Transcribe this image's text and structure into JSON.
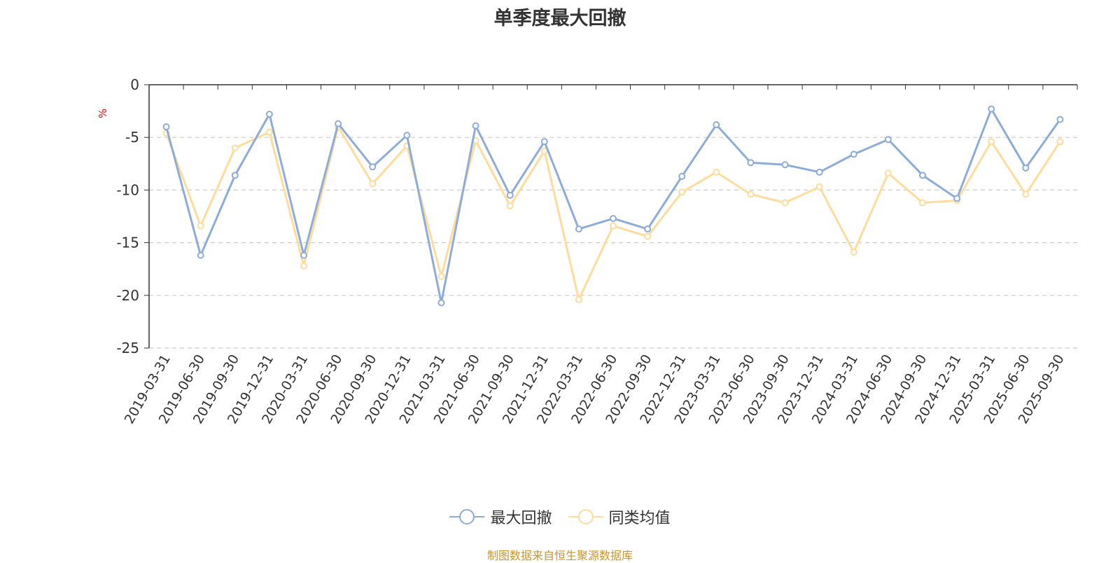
{
  "chart_data": {
    "type": "line",
    "title": "单季度最大回撤",
    "ylabel": "%",
    "ylim": [
      -25,
      0
    ],
    "yticks": [
      0,
      -5,
      -10,
      -15,
      -20,
      -25
    ],
    "grid": true,
    "legend_position": "bottom",
    "categories": [
      "2019-03-31",
      "2019-06-30",
      "2019-09-30",
      "2019-12-31",
      "2020-03-31",
      "2020-06-30",
      "2020-09-30",
      "2020-12-31",
      "2021-03-31",
      "2021-06-30",
      "2021-09-30",
      "2021-12-31",
      "2022-03-31",
      "2022-06-30",
      "2022-09-30",
      "2022-12-31",
      "2023-03-31",
      "2023-06-30",
      "2023-09-30",
      "2023-12-31",
      "2024-03-31",
      "2024-06-30",
      "2024-09-30",
      "2024-12-31",
      "2025-03-31",
      "2025-06-30",
      "2025-09-30"
    ],
    "series": [
      {
        "name": "最大回撤",
        "color": "#8eacd8",
        "values": [
          -4.0,
          -16.2,
          -8.6,
          -2.8,
          -16.2,
          -3.7,
          -7.8,
          -4.8,
          -20.7,
          -3.9,
          -10.5,
          -5.4,
          -13.7,
          -12.7,
          -13.7,
          -8.7,
          -3.8,
          -7.4,
          -7.6,
          -8.3,
          -6.6,
          -5.2,
          -8.6,
          -10.8,
          -2.3,
          -7.9,
          -3.3
        ]
      },
      {
        "name": "同类均值",
        "color": "#fddc9c",
        "values": [
          -4.6,
          -13.4,
          -6.0,
          -4.5,
          -17.2,
          -4.0,
          -9.4,
          -5.8,
          -18.2,
          -5.3,
          -11.5,
          -6.3,
          -20.4,
          -13.4,
          -14.4,
          -10.2,
          -8.3,
          -10.4,
          -11.2,
          -9.7,
          -15.9,
          -8.4,
          -11.2,
          -11.0,
          -5.4,
          -10.4,
          -5.4
        ]
      }
    ]
  },
  "source_note": "制图数据来自恒生聚源数据库"
}
